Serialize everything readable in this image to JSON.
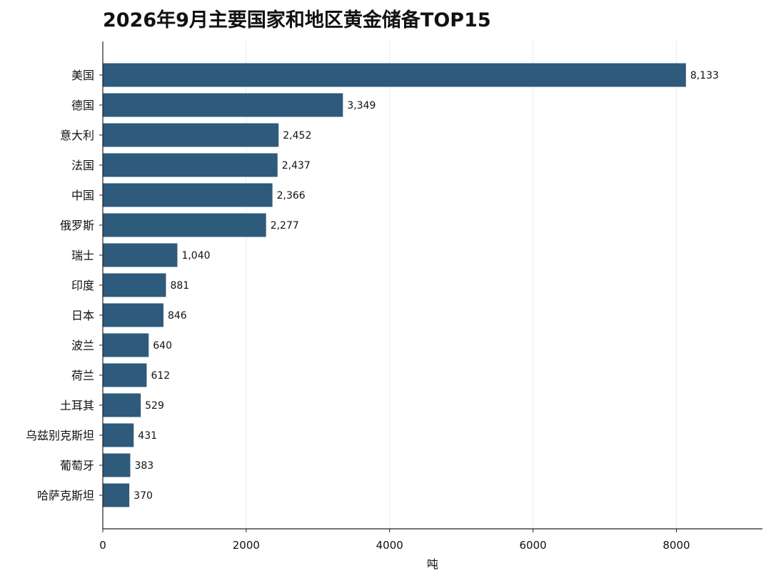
{
  "chart_data": {
    "type": "bar",
    "orientation": "horizontal",
    "title": "2026年9月主要国家和地区黄金储备TOP15",
    "xlabel": "吨",
    "ylabel": "",
    "xlim": [
      0,
      9200
    ],
    "xticks": [
      0,
      2000,
      4000,
      6000,
      8000
    ],
    "grid": "vertical",
    "bar_color": "#2e5a7b",
    "categories": [
      "美国",
      "德国",
      "意大利",
      "法国",
      "中国",
      "俄罗斯",
      "瑞士",
      "印度",
      "日本",
      "波兰",
      "荷兰",
      "土耳其",
      "乌兹别克斯坦",
      "葡萄牙",
      "哈萨克斯坦"
    ],
    "values": [
      8133,
      3349,
      2452,
      2437,
      2366,
      2277,
      1040,
      881,
      846,
      640,
      612,
      529,
      431,
      383,
      370
    ],
    "value_labels": [
      "8,133",
      "3,349",
      "2,452",
      "2,437",
      "2,366",
      "2,277",
      "1,040",
      "881",
      "846",
      "640",
      "612",
      "529",
      "431",
      "383",
      "370"
    ]
  }
}
